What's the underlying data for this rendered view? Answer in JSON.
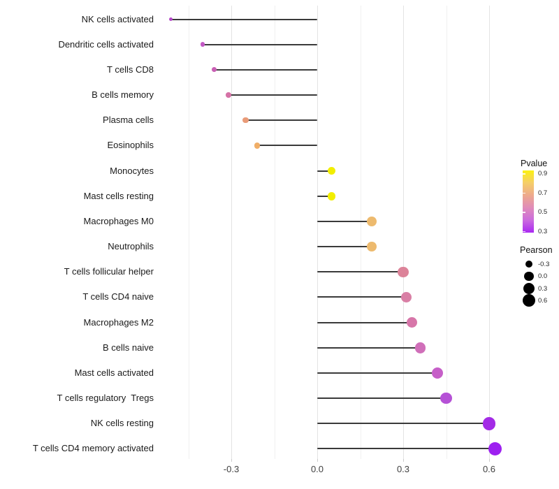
{
  "chart_data": {
    "type": "scatter",
    "variant": "lollipop",
    "title": "",
    "xlabel": "",
    "ylabel": "",
    "xlim": [
      -0.57,
      0.68
    ],
    "x_ticks": [
      {
        "value": -0.3,
        "label": "-0.3"
      },
      {
        "value": 0.0,
        "label": "0.0"
      },
      {
        "value": 0.3,
        "label": "0.3"
      },
      {
        "value": 0.6,
        "label": "0.6"
      }
    ],
    "minor_grid_values": [
      -0.45,
      -0.15,
      0.15,
      0.45
    ],
    "grid": true,
    "baseline": 0.0,
    "points": [
      {
        "label": "NK cells activated",
        "pearson": -0.51,
        "color": "#B447C8"
      },
      {
        "label": "Dendritic cells activated",
        "pearson": -0.4,
        "color": "#C258C4"
      },
      {
        "label": "T cells CD8",
        "pearson": -0.36,
        "color": "#C95FB4"
      },
      {
        "label": "B cells memory",
        "pearson": -0.31,
        "color": "#D572A6"
      },
      {
        "label": "Plasma cells",
        "pearson": -0.25,
        "color": "#E99B78"
      },
      {
        "label": "Eosinophils",
        "pearson": -0.21,
        "color": "#F0AE67"
      },
      {
        "label": "Monocytes",
        "pearson": 0.05,
        "color": "#F2EE00"
      },
      {
        "label": "Mast cells resting",
        "pearson": 0.05,
        "color": "#F2EE00"
      },
      {
        "label": "Macrophages M0",
        "pearson": 0.19,
        "color": "#EDBA6E"
      },
      {
        "label": "Neutrophils",
        "pearson": 0.19,
        "color": "#EDBA6E"
      },
      {
        "label": "T cells follicular helper",
        "pearson": 0.3,
        "color": "#DC8399"
      },
      {
        "label": "T cells CD4 naive",
        "pearson": 0.31,
        "color": "#D97FA5"
      },
      {
        "label": "Macrophages M2",
        "pearson": 0.33,
        "color": "#D776A9"
      },
      {
        "label": "B cells naive",
        "pearson": 0.36,
        "color": "#D06FB9"
      },
      {
        "label": "Mast cells activated",
        "pearson": 0.42,
        "color": "#C65FC8"
      },
      {
        "label": "T cells regulatory  Tregs",
        "pearson": 0.45,
        "color": "#B551D6"
      },
      {
        "label": "NK cells resting",
        "pearson": 0.6,
        "color": "#A32BE6"
      },
      {
        "label": "T cells CD4 memory activated",
        "pearson": 0.62,
        "color": "#9D20F0"
      }
    ],
    "legend_position": "right"
  },
  "legend_pvalue": {
    "title": "Pvalue",
    "tick_labels": [
      "0.9",
      "0.7",
      "0.5",
      "0.3"
    ],
    "gradient_top_color": "#FBF112",
    "gradient_stops": [
      "#FBF112",
      "#F5CE69",
      "#EDA98D",
      "#E08CBA",
      "#CB6BDE",
      "#A928F2"
    ],
    "gradient_bottom_color": "#A928F2"
  },
  "legend_pearson": {
    "title": "Pearson",
    "items": [
      {
        "label": "-0.3"
      },
      {
        "label": "0.0"
      },
      {
        "label": "0.3"
      },
      {
        "label": "0.6"
      }
    ],
    "dot_color": "#000000"
  },
  "colors": {
    "stem": "#3a3a3a",
    "major_grid": "#e3e3e3",
    "minor_grid": "#f0f0f0",
    "background": "#ffffff"
  }
}
